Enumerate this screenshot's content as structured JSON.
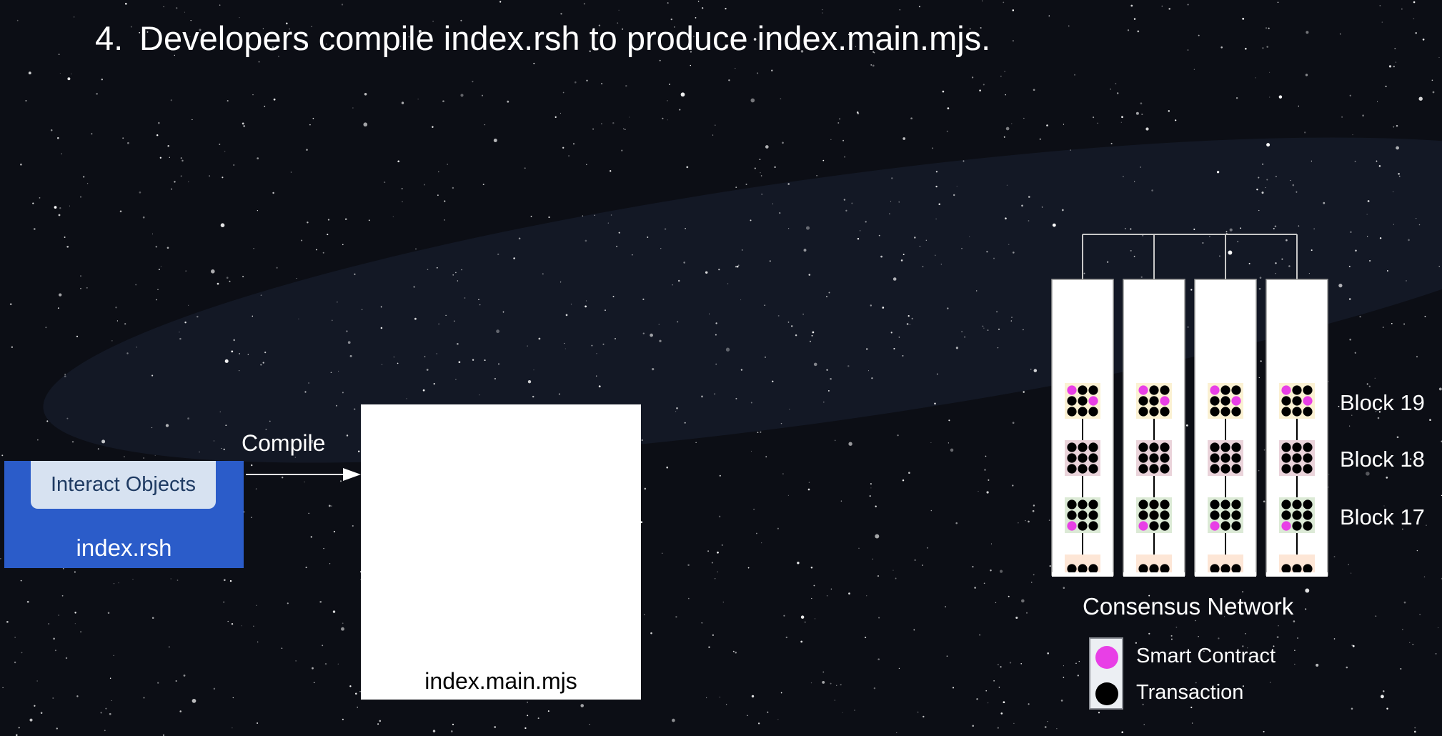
{
  "slide": {
    "number": "4.",
    "title": "Developers compile index.rsh to produce index.main.mjs."
  },
  "source": {
    "interact_label": "Interact Objects",
    "file_label": "index.rsh"
  },
  "compile_label": "Compile",
  "output": {
    "file_label": "index.main.mjs"
  },
  "network": {
    "label": "Consensus Network",
    "node_count": 4,
    "blocks": [
      {
        "label": "Block 19"
      },
      {
        "label": "Block 18"
      },
      {
        "label": "Block 17"
      }
    ]
  },
  "legend": {
    "smart_contract": "Smart Contract",
    "transaction": "Transaction"
  },
  "colors": {
    "background": "#0c0e15",
    "rsh_blue": "#2b5cc9",
    "interact_fill": "#d7e2f1",
    "smart_contract": "#e83fe6",
    "transaction": "#000000",
    "block19_tint": "#fbf1d3",
    "block18_tint": "#ead3da",
    "block17_tint": "#dcead6",
    "block16_tint": "#fde6d6"
  }
}
